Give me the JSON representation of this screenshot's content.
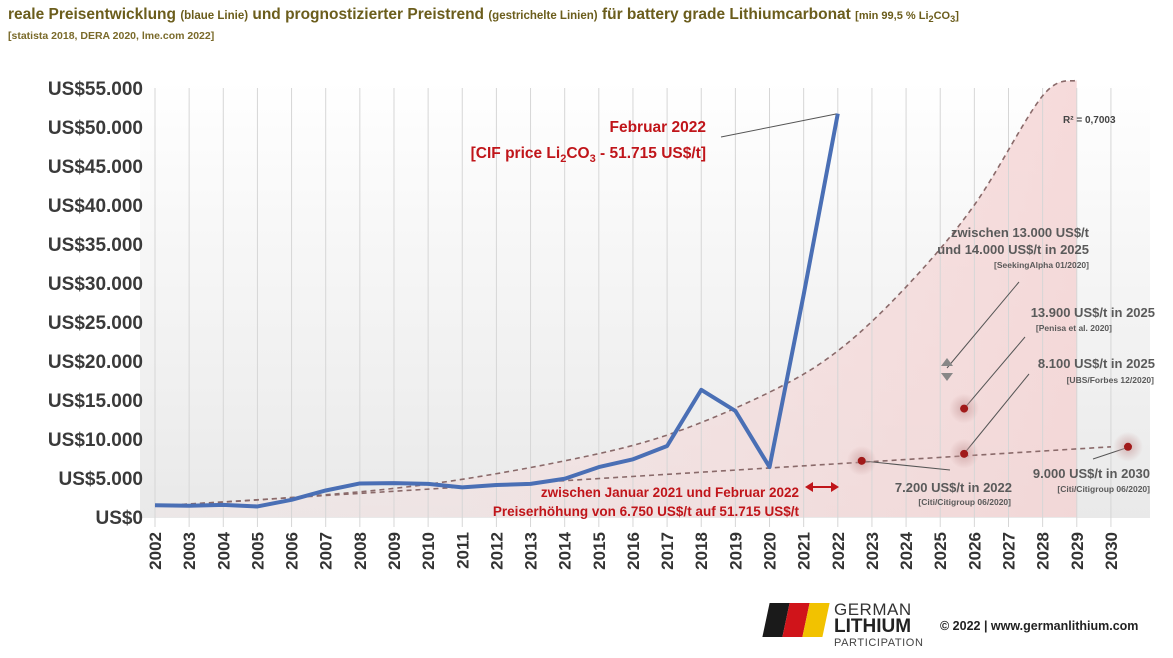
{
  "header": {
    "title_a": "reale Preisentwicklung",
    "title_b": "(blaue Linie)",
    "title_c": "und prognostizierter Preistrend",
    "title_d": "(gestrichelte Linien)",
    "title_e": "für battery grade Lithiumcarbonat",
    "title_f": "[min 99,5 % Li",
    "title_f_sub1": "2",
    "title_f_mid": "CO",
    "title_f_sub2": "3",
    "title_f_end": "]",
    "subtitle": "[statista 2018, DERA 2020, lme.com 2022]"
  },
  "chart_data": {
    "type": "line",
    "x": [
      "2002",
      "2003",
      "2004",
      "2005",
      "2006",
      "2007",
      "2008",
      "2009",
      "2010",
      "2011",
      "2012",
      "2013",
      "2014",
      "2015",
      "2016",
      "2017",
      "2018",
      "2019",
      "2020",
      "2021",
      "2022",
      "2023",
      "2024",
      "2025",
      "2026",
      "2027",
      "2028",
      "2029",
      "2030"
    ],
    "yticks": [
      "US$0",
      "US$5.000",
      "US$10.000",
      "US$15.000",
      "US$20.000",
      "US$25.000",
      "US$30.000",
      "US$35.000",
      "US$40.000",
      "US$45.000",
      "US$50.000",
      "US$55.000"
    ],
    "ylim": [
      0,
      55000
    ],
    "grid": "vertical",
    "series": [
      {
        "style": "solid",
        "color": "#4a6fb5",
        "points": [
          [
            "2002",
            1500
          ],
          [
            "2003",
            1450
          ],
          [
            "2004",
            1550
          ],
          [
            "2005",
            1350
          ],
          [
            "2006",
            2200
          ],
          [
            "2007",
            3400
          ],
          [
            "2008",
            4300
          ],
          [
            "2009",
            4350
          ],
          [
            "2010",
            4250
          ],
          [
            "2011",
            3800
          ],
          [
            "2012",
            4100
          ],
          [
            "2013",
            4250
          ],
          [
            "2014",
            4900
          ],
          [
            "2015",
            6400
          ],
          [
            "2016",
            7400
          ],
          [
            "2017",
            9100
          ],
          [
            "2018",
            16300
          ],
          [
            "2019",
            13600
          ],
          [
            "2020",
            6400
          ],
          [
            "2021",
            28500
          ],
          [
            "2022",
            51715
          ]
        ]
      },
      {
        "style": "dashed",
        "color": "#8a6a6a",
        "points": [
          [
            "2002",
            1400
          ],
          [
            "2006",
            2500
          ],
          [
            "2010",
            4200
          ],
          [
            "2014",
            7200
          ],
          [
            "2017",
            10500
          ],
          [
            "2020",
            16000
          ],
          [
            "2022",
            21300
          ],
          [
            "2024",
            29500
          ],
          [
            "2026",
            40000
          ],
          [
            "2028",
            54000
          ],
          [
            "2029",
            56000
          ]
        ]
      },
      {
        "style": "dashed",
        "color": "#8a6a6a",
        "points": [
          [
            "2002",
            1400
          ],
          [
            "2030",
            9000
          ]
        ]
      }
    ],
    "markers": [
      {
        "x": "2022.7",
        "y": 7200
      },
      {
        "x": "2025.7",
        "y": 8100
      },
      {
        "x": "2025.7",
        "y": 13900
      },
      {
        "x": "2030.5",
        "y": 9000
      }
    ],
    "annotations": {
      "feb_line1": "Februar 2022",
      "feb_line2": "[CIF price Li",
      "feb_sub1": "2",
      "feb_mid": "CO",
      "feb_sub2": "3",
      "feb_end": " - 51.715 US$/t]",
      "r2": "R² = 0,7003",
      "seek_1": "zwischen 13.000 US$/t",
      "seek_2": "und 14.000 US$/t in 2025",
      "seek_src": "[SeekingAlpha 01/2020]",
      "penisa_1": "13.900 US$/t in 2025",
      "penisa_src": "[Penisa et al. 2020]",
      "ubs_1": "8.100 US$/t in 2025",
      "ubs_src": "[UBS/Forbes 12/2020]",
      "citi22_1": "7.200 US$/t in 2022",
      "citi22_src": "[Citi/Citigroup 06/2020]",
      "citi30_1": "9.000 US$/t in 2030",
      "citi30_src": "[Citi/Citigroup 06/2020]",
      "rise_1": "zwischen Januar 2021 und Februar 2022",
      "rise_2": "Preiserhöhung von 6.750 US$/t auf 51.715 US$/t"
    }
  },
  "colors": {
    "actual": "#4a6fb5",
    "trend": "#8a6a6a",
    "highlight": "#c0151a",
    "marker": "#a11a1a"
  },
  "footer": {
    "logo_line1": "GERMAN",
    "logo_line2": "LITHIUM",
    "logo_line3": "PARTICIPATION",
    "copyright": "© 2022 | www.germanlithium.com"
  },
  "icons": {
    "logo": "german-lithium-logo-icon",
    "arrow": "double-arrow-icon"
  }
}
